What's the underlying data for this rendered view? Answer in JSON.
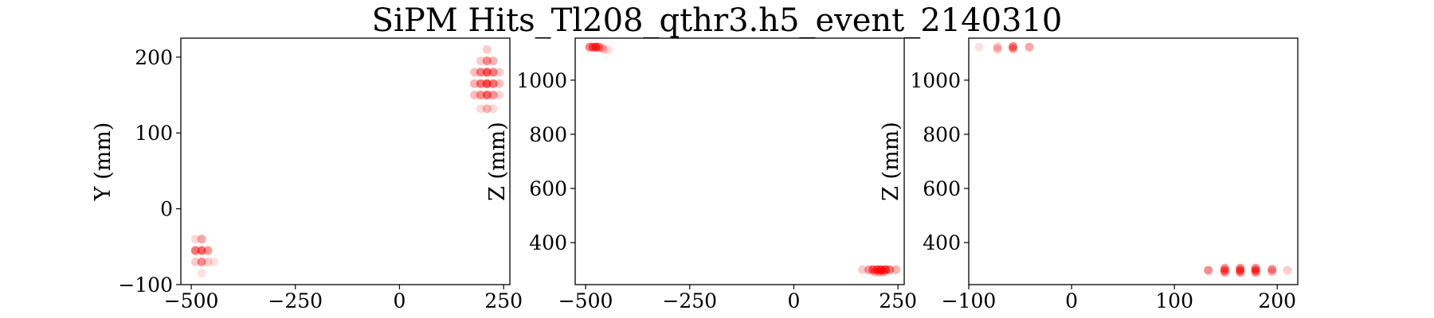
{
  "figure": {
    "title": "SiPM Hits_Tl208_qthr3.h5_event_2140310"
  },
  "chart_data": [
    {
      "type": "scatter",
      "title": "",
      "xlabel": "",
      "ylabel": "Y (mm)",
      "xlim": [
        -525,
        265
      ],
      "ylim": [
        -100,
        225
      ],
      "xticks": [
        -500,
        -250,
        0,
        250
      ],
      "yticks": [
        -100,
        0,
        100,
        200
      ],
      "xtick_labels": [
        "−500",
        "−250",
        "0",
        "250"
      ],
      "ytick_labels": [
        "−100",
        "0",
        "100",
        "200"
      ],
      "grid": false,
      "marker_color": "#ff0000",
      "points": [
        {
          "x": -475,
          "y": -40,
          "a": 0.35
        },
        {
          "x": -490,
          "y": -40,
          "a": 0.15
        },
        {
          "x": -490,
          "y": -55,
          "a": 0.55
        },
        {
          "x": -475,
          "y": -55,
          "a": 0.6
        },
        {
          "x": -460,
          "y": -55,
          "a": 0.4
        },
        {
          "x": -490,
          "y": -70,
          "a": 0.2
        },
        {
          "x": -475,
          "y": -70,
          "a": 0.45
        },
        {
          "x": -460,
          "y": -70,
          "a": 0.2
        },
        {
          "x": -445,
          "y": -70,
          "a": 0.12
        },
        {
          "x": -475,
          "y": -85,
          "a": 0.12
        },
        {
          "x": 210,
          "y": 210,
          "a": 0.2
        },
        {
          "x": 195,
          "y": 195,
          "a": 0.2
        },
        {
          "x": 210,
          "y": 195,
          "a": 0.45
        },
        {
          "x": 225,
          "y": 195,
          "a": 0.3
        },
        {
          "x": 180,
          "y": 180,
          "a": 0.25
        },
        {
          "x": 195,
          "y": 180,
          "a": 0.5
        },
        {
          "x": 210,
          "y": 180,
          "a": 0.65
        },
        {
          "x": 225,
          "y": 180,
          "a": 0.5
        },
        {
          "x": 240,
          "y": 180,
          "a": 0.2
        },
        {
          "x": 180,
          "y": 165,
          "a": 0.3
        },
        {
          "x": 195,
          "y": 165,
          "a": 0.55
        },
        {
          "x": 210,
          "y": 165,
          "a": 0.7
        },
        {
          "x": 225,
          "y": 165,
          "a": 0.55
        },
        {
          "x": 240,
          "y": 165,
          "a": 0.25
        },
        {
          "x": 180,
          "y": 150,
          "a": 0.25
        },
        {
          "x": 195,
          "y": 150,
          "a": 0.45
        },
        {
          "x": 210,
          "y": 150,
          "a": 0.6
        },
        {
          "x": 225,
          "y": 150,
          "a": 0.4
        },
        {
          "x": 240,
          "y": 150,
          "a": 0.15
        },
        {
          "x": 195,
          "y": 132,
          "a": 0.15
        },
        {
          "x": 210,
          "y": 132,
          "a": 0.3
        },
        {
          "x": 225,
          "y": 132,
          "a": 0.15
        }
      ]
    },
    {
      "type": "scatter",
      "title": "",
      "xlabel": "",
      "ylabel": "Z (mm)",
      "xlim": [
        -525,
        265
      ],
      "ylim": [
        245,
        1155
      ],
      "xticks": [
        -500,
        -250,
        0,
        250
      ],
      "yticks": [
        400,
        600,
        800,
        1000
      ],
      "xtick_labels": [
        "−500",
        "−250",
        "0",
        "250"
      ],
      "ytick_labels": [
        "400",
        "600",
        "800",
        "1000"
      ],
      "grid": false,
      "marker_color": "#ff0000",
      "points": [
        {
          "x": -490,
          "y": 1122,
          "a": 0.5
        },
        {
          "x": -482,
          "y": 1122,
          "a": 0.6
        },
        {
          "x": -475,
          "y": 1122,
          "a": 0.7
        },
        {
          "x": -468,
          "y": 1122,
          "a": 0.45
        },
        {
          "x": -460,
          "y": 1118,
          "a": 0.3
        },
        {
          "x": -455,
          "y": 1112,
          "a": 0.15
        },
        {
          "x": -445,
          "y": 1112,
          "a": 0.12
        },
        {
          "x": 165,
          "y": 300,
          "a": 0.2
        },
        {
          "x": 180,
          "y": 300,
          "a": 0.4
        },
        {
          "x": 190,
          "y": 300,
          "a": 0.6
        },
        {
          "x": 200,
          "y": 300,
          "a": 0.7
        },
        {
          "x": 210,
          "y": 300,
          "a": 0.75
        },
        {
          "x": 220,
          "y": 300,
          "a": 0.7
        },
        {
          "x": 230,
          "y": 300,
          "a": 0.5
        },
        {
          "x": 245,
          "y": 300,
          "a": 0.3
        },
        {
          "x": 205,
          "y": 292,
          "a": 0.4
        },
        {
          "x": 215,
          "y": 292,
          "a": 0.4
        },
        {
          "x": 195,
          "y": 292,
          "a": 0.3
        }
      ]
    },
    {
      "type": "scatter",
      "title": "",
      "xlabel": "",
      "ylabel": "Z (mm)",
      "xlim": [
        -100,
        220
      ],
      "ylim": [
        245,
        1155
      ],
      "xticks": [
        -100,
        0,
        100,
        200
      ],
      "yticks": [
        400,
        600,
        800,
        1000
      ],
      "xtick_labels": [
        "−100",
        "0",
        "100",
        "200"
      ],
      "ytick_labels": [
        "400",
        "600",
        "800",
        "1000"
      ],
      "grid": false,
      "marker_color": "#ff0000",
      "points": [
        {
          "x": -90,
          "y": 1122,
          "a": 0.12
        },
        {
          "x": -72,
          "y": 1122,
          "a": 0.25
        },
        {
          "x": -72,
          "y": 1114,
          "a": 0.2
        },
        {
          "x": -57,
          "y": 1124,
          "a": 0.5
        },
        {
          "x": -57,
          "y": 1116,
          "a": 0.4
        },
        {
          "x": -41,
          "y": 1122,
          "a": 0.35
        },
        {
          "x": 133,
          "y": 298,
          "a": 0.45
        },
        {
          "x": 149,
          "y": 306,
          "a": 0.4
        },
        {
          "x": 149,
          "y": 298,
          "a": 0.55
        },
        {
          "x": 149,
          "y": 290,
          "a": 0.4
        },
        {
          "x": 164,
          "y": 306,
          "a": 0.45
        },
        {
          "x": 164,
          "y": 298,
          "a": 0.6
        },
        {
          "x": 164,
          "y": 290,
          "a": 0.45
        },
        {
          "x": 179,
          "y": 306,
          "a": 0.45
        },
        {
          "x": 179,
          "y": 298,
          "a": 0.6
        },
        {
          "x": 179,
          "y": 290,
          "a": 0.45
        },
        {
          "x": 195,
          "y": 302,
          "a": 0.4
        },
        {
          "x": 195,
          "y": 294,
          "a": 0.35
        },
        {
          "x": 210,
          "y": 298,
          "a": 0.2
        }
      ]
    }
  ]
}
